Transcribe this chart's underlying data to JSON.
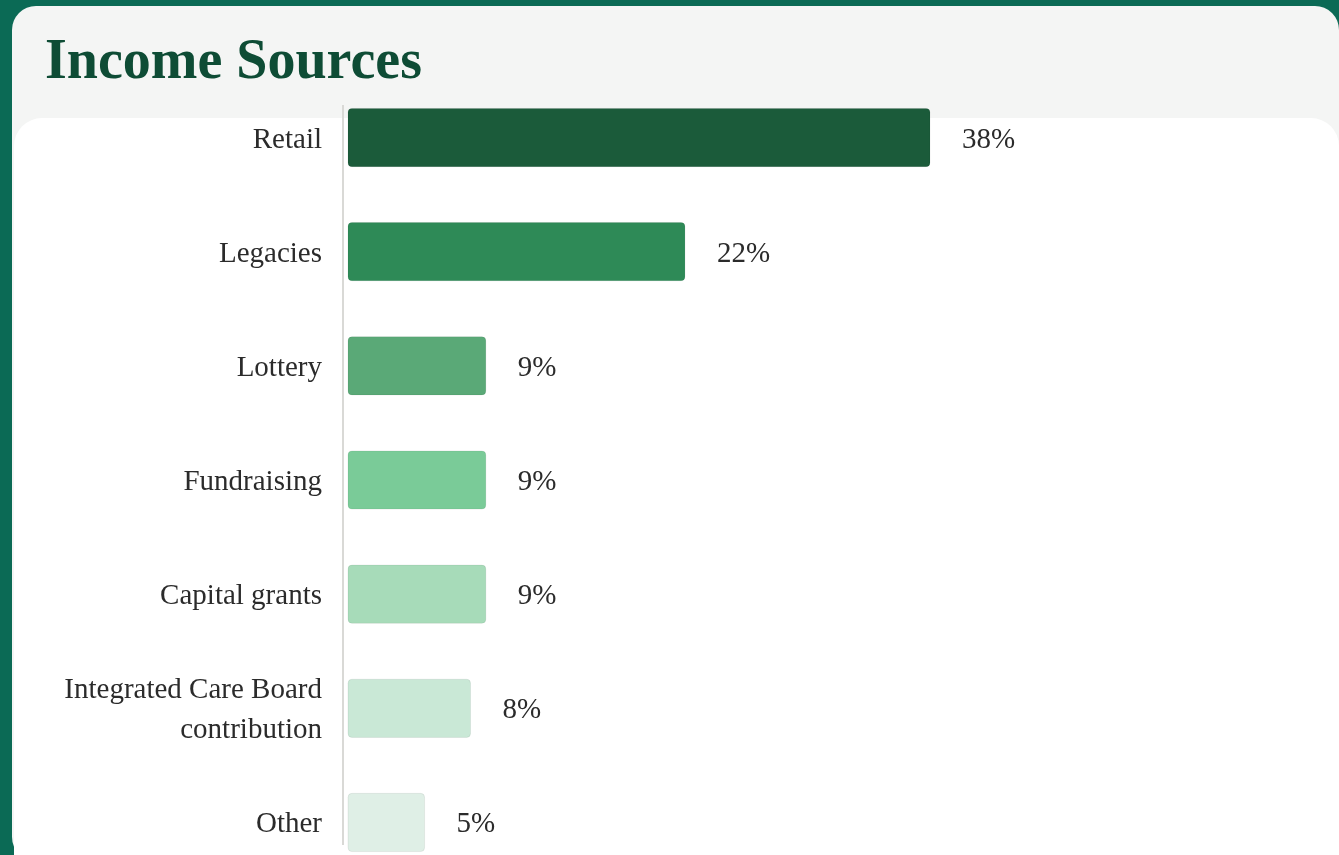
{
  "chart_data": {
    "type": "bar",
    "orientation": "horizontal",
    "title": "Income Sources",
    "categories": [
      "Retail",
      "Legacies",
      "Lottery",
      "Fundraising",
      "Capital grants",
      "Integrated Care Board contribution",
      "Other"
    ],
    "values": [
      38,
      22,
      9,
      9,
      9,
      8,
      5
    ],
    "colors": [
      "#1b5b3a",
      "#2e8a57",
      "#5aa977",
      "#7acb98",
      "#a7dbb9",
      "#c9e8d6",
      "#dfefe6"
    ],
    "value_labels": [
      "38%",
      "22%",
      "9%",
      "9%",
      "9%",
      "8%",
      "5%"
    ]
  }
}
